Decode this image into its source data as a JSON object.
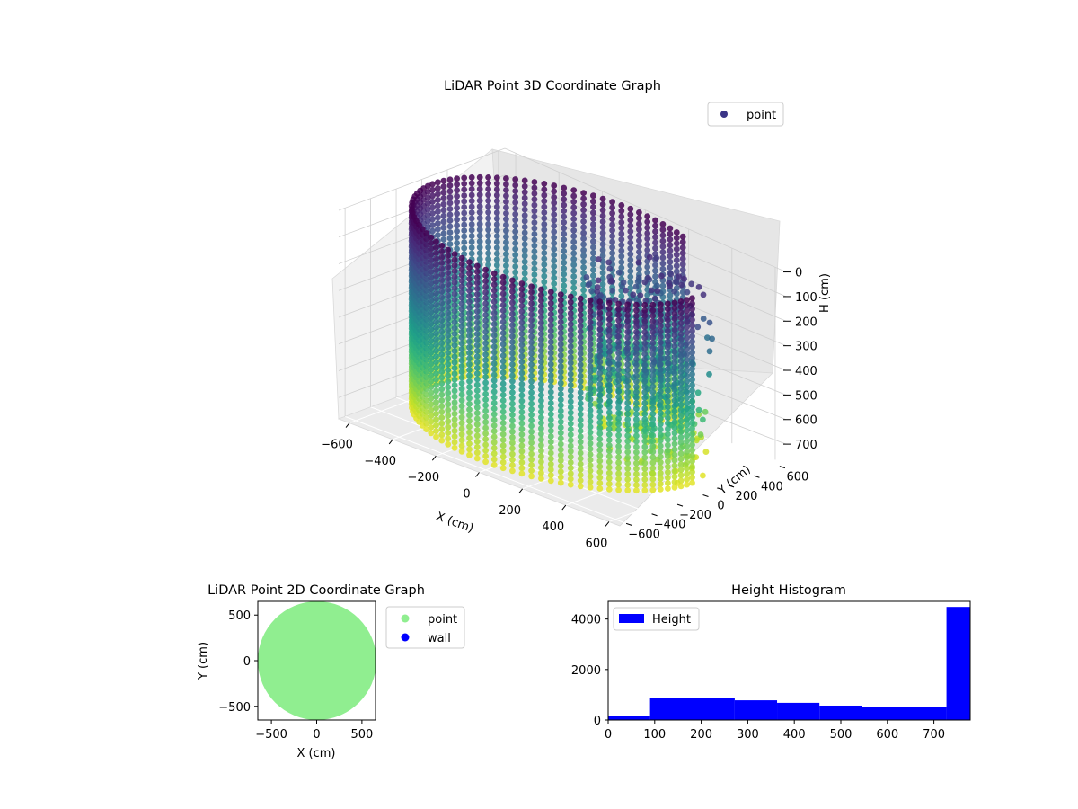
{
  "chart_data": [
    {
      "type": "scatter3d",
      "title": "LiDAR Point 3D Coordinate Graph",
      "xlabel": "X (cm)",
      "ylabel": "Y (cm)",
      "zlabel": "H (cm)",
      "x_ticks": [
        "−600",
        "−400",
        "−200",
        "0",
        "200",
        "400",
        "600"
      ],
      "y_ticks": [
        "−600",
        "−400",
        "−200",
        "0",
        "200",
        "400",
        "600"
      ],
      "z_ticks": [
        "0",
        "100",
        "200",
        "300",
        "400",
        "500",
        "600",
        "700"
      ],
      "xlim": [
        -650,
        650
      ],
      "ylim": [
        -650,
        650
      ],
      "zlim": [
        0,
        780
      ],
      "z_inverted": true,
      "colormap": "viridis",
      "legend": {
        "entries": [
          "point"
        ],
        "placement": "top-right"
      },
      "point_color": "#3b3587",
      "description_shape": "cylindrical wall of points, radius ~600 cm, heights 0–780 cm, with interior clutter near +X,+Y"
    },
    {
      "type": "scatter",
      "title": "LiDAR Point 2D Coordinate Graph",
      "xlabel": "X (cm)",
      "ylabel": "Y (cm)",
      "x_ticks": [
        "−500",
        "0",
        "500"
      ],
      "y_ticks": [
        "−500",
        "0",
        "500"
      ],
      "xlim": [
        -650,
        650
      ],
      "ylim": [
        -650,
        650
      ],
      "series": [
        {
          "name": "point",
          "color": "#90ee90",
          "shape": "filled disk, radius ~650 cm"
        },
        {
          "name": "wall",
          "color": "#0000ff"
        }
      ],
      "legend": {
        "entries": [
          "point",
          "wall"
        ],
        "placement": "outside-right"
      }
    },
    {
      "type": "bar",
      "title": "Height Histogram",
      "xlabel": "",
      "ylabel": "",
      "x_ticks": [
        "0",
        "100",
        "200",
        "300",
        "400",
        "500",
        "600",
        "700"
      ],
      "y_ticks": [
        "0",
        "2000",
        "4000"
      ],
      "xlim": [
        0,
        778
      ],
      "ylim": [
        0,
        4700
      ],
      "bin_edges": [
        0,
        90,
        272,
        363,
        454,
        545,
        727,
        778
      ],
      "values": [
        150,
        880,
        780,
        680,
        570,
        510,
        4480
      ],
      "series": [
        {
          "name": "Height",
          "color": "#0000ff"
        }
      ],
      "legend": {
        "entries": [
          "Height"
        ],
        "placement": "top-left"
      }
    }
  ]
}
